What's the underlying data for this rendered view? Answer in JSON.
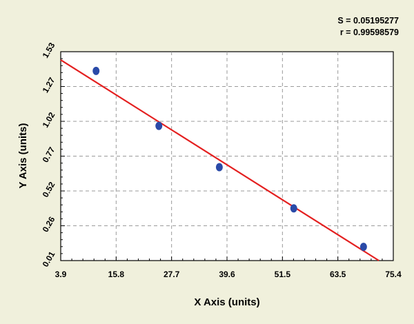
{
  "stats": {
    "s_label": "S = 0.05195277",
    "r_label": "r = 0.99598579"
  },
  "chart_data": {
    "type": "scatter",
    "title": "",
    "xlabel": "X Axis (units)",
    "ylabel": "Y Axis (units)",
    "xlim": [
      3.9,
      75.4
    ],
    "ylim": [
      0.01,
      1.53
    ],
    "x_ticks": [
      "3.9",
      "15.8",
      "27.7",
      "39.6",
      "51.5",
      "63.5",
      "75.4"
    ],
    "y_ticks": [
      "0.01",
      "0.26",
      "0.52",
      "0.77",
      "1.02",
      "1.27",
      "1.53"
    ],
    "grid": true,
    "series": [
      {
        "points": [
          {
            "x": 11.5,
            "y": 1.39
          },
          {
            "x": 25.0,
            "y": 0.99
          },
          {
            "x": 38.0,
            "y": 0.69
          },
          {
            "x": 54.0,
            "y": 0.39
          },
          {
            "x": 69.0,
            "y": 0.11
          }
        ],
        "color": "#2a4aa8"
      }
    ],
    "fit_line": {
      "from": {
        "x": 3.9,
        "y": 1.47
      },
      "to": {
        "x": 72.3,
        "y": 0.01
      },
      "color": "#e42020"
    }
  }
}
